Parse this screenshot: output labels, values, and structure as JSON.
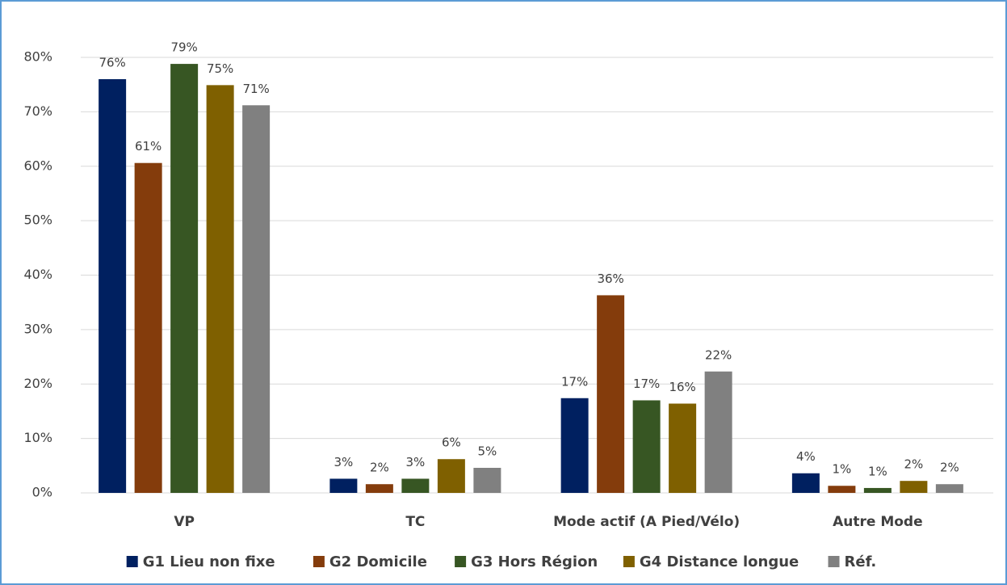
{
  "chart_data": {
    "type": "bar",
    "categories": [
      "VP",
      "TC",
      "Mode actif (A Pied/Vélo)",
      "Autre Mode"
    ],
    "series": [
      {
        "name": "G1 Lieu non fixe",
        "color": "#002060",
        "values": [
          76.0,
          2.6,
          17.4,
          3.6
        ],
        "value_labels": [
          "76%",
          "3%",
          "17%",
          "4%"
        ]
      },
      {
        "name": "G2 Domicile",
        "color": "#843c0c",
        "values": [
          60.6,
          1.6,
          36.3,
          1.3
        ],
        "value_labels": [
          "61%",
          "2%",
          "36%",
          "1%"
        ]
      },
      {
        "name": "G3 Hors Région",
        "color": "#375623",
        "values": [
          78.8,
          2.6,
          17.0,
          0.9
        ],
        "value_labels": [
          "79%",
          "3%",
          "17%",
          "1%"
        ]
      },
      {
        "name": "G4 Distance longue",
        "color": "#7f6000",
        "values": [
          74.9,
          6.2,
          16.4,
          2.2
        ],
        "value_labels": [
          "75%",
          "6%",
          "16%",
          "2%"
        ]
      },
      {
        "name": "Réf.",
        "color": "#808080",
        "values": [
          71.2,
          4.6,
          22.3,
          1.6
        ],
        "value_labels": [
          "71%",
          "5%",
          "22%",
          "2%"
        ]
      }
    ],
    "ylim": [
      0,
      80
    ],
    "yticks": [
      {
        "value": 0,
        "label": "0%"
      },
      {
        "value": 10,
        "label": "10%"
      },
      {
        "value": 20,
        "label": "20%"
      },
      {
        "value": 30,
        "label": "30%"
      },
      {
        "value": 40,
        "label": "40%"
      },
      {
        "value": 50,
        "label": "50%"
      },
      {
        "value": 60,
        "label": "60%"
      },
      {
        "value": 70,
        "label": "70%"
      },
      {
        "value": 80,
        "label": "80%"
      }
    ],
    "grid": true,
    "legend": "bottom"
  }
}
